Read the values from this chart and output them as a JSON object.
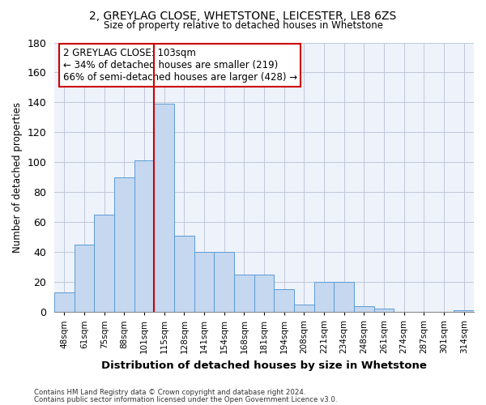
{
  "title_line1": "2, GREYLAG CLOSE, WHETSTONE, LEICESTER, LE8 6ZS",
  "title_line2": "Size of property relative to detached houses in Whetstone",
  "xlabel": "Distribution of detached houses by size in Whetstone",
  "ylabel": "Number of detached properties",
  "categories": [
    "48sqm",
    "61sqm",
    "75sqm",
    "88sqm",
    "101sqm",
    "115sqm",
    "128sqm",
    "141sqm",
    "154sqm",
    "168sqm",
    "181sqm",
    "194sqm",
    "208sqm",
    "221sqm",
    "234sqm",
    "248sqm",
    "261sqm",
    "274sqm",
    "287sqm",
    "301sqm",
    "314sqm"
  ],
  "values": [
    13,
    45,
    65,
    90,
    101,
    139,
    51,
    40,
    40,
    25,
    25,
    15,
    5,
    20,
    20,
    4,
    2,
    0,
    0,
    0,
    1
  ],
  "bar_color": "#c5d8f0",
  "bar_edge_color": "#5b9bd5",
  "vline_index": 4,
  "vline_color": "#cc0000",
  "ylim": [
    0,
    180
  ],
  "yticks": [
    0,
    20,
    40,
    60,
    80,
    100,
    120,
    140,
    160,
    180
  ],
  "annotation_text": "2 GREYLAG CLOSE: 103sqm\n← 34% of detached houses are smaller (219)\n66% of semi-detached houses are larger (428) →",
  "annotation_box_color": "#ffffff",
  "annotation_box_edge": "#cc0000",
  "footer_line1": "Contains HM Land Registry data © Crown copyright and database right 2024.",
  "footer_line2": "Contains public sector information licensed under the Open Government Licence v3.0.",
  "background_color": "#eef2fb",
  "grid_color": "#c0c8d8"
}
